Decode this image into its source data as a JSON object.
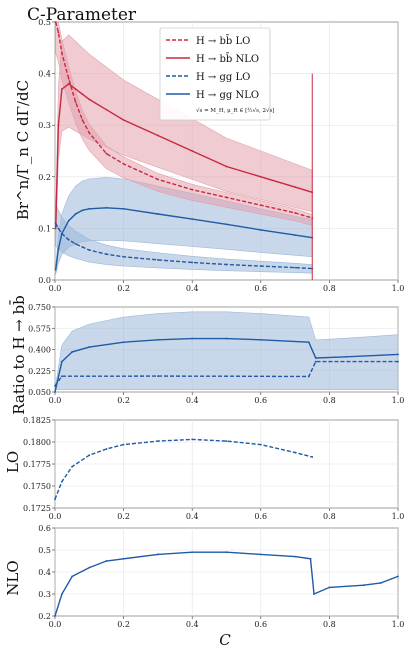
{
  "colors": {
    "red": "#c8283f",
    "blue": "#1f5ba6",
    "red_band": "#e3a1ad",
    "blue_band": "#9bb8d9"
  },
  "chart_data": [
    {
      "type": "line",
      "title": "C-Parameter",
      "ylabel": "Br^n/Γ_n C dΓ/dC",
      "xlim": [
        0,
        1
      ],
      "ylim": [
        0,
        0.5
      ],
      "yticks": [
        "0.0",
        "0.1",
        "0.2",
        "0.3",
        "0.4",
        "0.5"
      ],
      "xticks": [
        "0.0",
        "0.2",
        "0.4",
        "0.6",
        "0.8",
        "1.0"
      ],
      "grid": true,
      "legend_position": "top-center",
      "legend_note": "√s = M_H, μ_R ∈ [½√s, 2√s]",
      "series": [
        {
          "name": "H → bb̄ LO",
          "style": "dashed",
          "color": "red",
          "x": [
            0.002,
            0.01,
            0.02,
            0.04,
            0.06,
            0.08,
            0.1,
            0.15,
            0.2,
            0.3,
            0.4,
            0.5,
            0.6,
            0.7,
            0.75
          ],
          "y": [
            0.5,
            0.48,
            0.44,
            0.39,
            0.345,
            0.31,
            0.285,
            0.245,
            0.225,
            0.195,
            0.175,
            0.16,
            0.145,
            0.13,
            0.12
          ]
        },
        {
          "name": "H → bb̄ NLO",
          "style": "solid",
          "color": "red",
          "x": [
            0.002,
            0.01,
            0.02,
            0.04,
            0.06,
            0.08,
            0.1,
            0.15,
            0.2,
            0.3,
            0.4,
            0.5,
            0.6,
            0.7,
            0.75
          ],
          "y": [
            0.1,
            0.3,
            0.37,
            0.38,
            0.37,
            0.36,
            0.35,
            0.33,
            0.31,
            0.28,
            0.25,
            0.22,
            0.2,
            0.18,
            0.17
          ]
        },
        {
          "name": "H → gg LO",
          "style": "dashed",
          "color": "blue",
          "x": [
            0.002,
            0.01,
            0.02,
            0.04,
            0.06,
            0.08,
            0.1,
            0.15,
            0.2,
            0.3,
            0.4,
            0.5,
            0.6,
            0.7,
            0.75
          ],
          "y": [
            0.11,
            0.1,
            0.09,
            0.078,
            0.07,
            0.064,
            0.058,
            0.05,
            0.045,
            0.039,
            0.034,
            0.03,
            0.027,
            0.024,
            0.022
          ]
        },
        {
          "name": "H → gg NLO",
          "style": "solid",
          "color": "blue",
          "x": [
            0.002,
            0.01,
            0.02,
            0.04,
            0.06,
            0.08,
            0.1,
            0.15,
            0.2,
            0.3,
            0.4,
            0.5,
            0.6,
            0.7,
            0.75
          ],
          "y": [
            0.02,
            0.06,
            0.09,
            0.115,
            0.128,
            0.135,
            0.138,
            0.14,
            0.138,
            0.128,
            0.118,
            0.108,
            0.097,
            0.087,
            0.082
          ]
        }
      ]
    },
    {
      "type": "line",
      "ylabel": "Ratio to H → bb̄",
      "xlim": [
        0,
        1
      ],
      "ylim": [
        0.05,
        0.75
      ],
      "yticks": [
        "0.050",
        "0.225",
        "0.400",
        "0.575",
        "0.750"
      ],
      "xticks": [
        "0.0",
        "0.2",
        "0.4",
        "0.6",
        "0.8",
        "1.0"
      ],
      "series": [
        {
          "name": "LO",
          "style": "dashed",
          "color": "blue",
          "x": [
            0.0,
            0.02,
            0.1,
            0.3,
            0.5,
            0.74,
            0.76,
            1.0
          ],
          "y": [
            0.1,
            0.18,
            0.18,
            0.181,
            0.18,
            0.178,
            0.3,
            0.3
          ]
        },
        {
          "name": "NLO",
          "style": "solid",
          "color": "blue",
          "x": [
            0.0,
            0.02,
            0.05,
            0.1,
            0.2,
            0.3,
            0.4,
            0.5,
            0.6,
            0.74,
            0.76,
            0.85,
            1.0
          ],
          "y": [
            0.05,
            0.3,
            0.38,
            0.42,
            0.46,
            0.48,
            0.49,
            0.49,
            0.48,
            0.46,
            0.33,
            0.34,
            0.36
          ]
        }
      ]
    },
    {
      "type": "line",
      "ylabel": "LO",
      "xlim": [
        0,
        1
      ],
      "ylim": [
        0.1725,
        0.1825
      ],
      "yticks": [
        "0.1725",
        "0.1750",
        "0.1775",
        "0.1800",
        "0.1825"
      ],
      "xticks": [
        "0.0",
        "0.2",
        "0.4",
        "0.6",
        "0.8",
        "1.0"
      ],
      "series": [
        {
          "name": "LO",
          "style": "dashed",
          "color": "blue",
          "x": [
            0.0,
            0.02,
            0.05,
            0.1,
            0.15,
            0.2,
            0.3,
            0.4,
            0.5,
            0.6,
            0.7,
            0.75
          ],
          "y": [
            0.1735,
            0.1755,
            0.1772,
            0.1785,
            0.1792,
            0.1797,
            0.1801,
            0.1803,
            0.1801,
            0.1797,
            0.1788,
            0.1783
          ]
        }
      ]
    },
    {
      "type": "line",
      "ylabel": "NLO",
      "xlim": [
        0,
        1
      ],
      "ylim": [
        0.2,
        0.6
      ],
      "yticks": [
        "0.2",
        "0.3",
        "0.4",
        "0.5",
        "0.6"
      ],
      "xticks": [
        "0.0",
        "0.2",
        "0.4",
        "0.6",
        "0.8",
        "1.0"
      ],
      "xlabel": "C",
      "series": [
        {
          "name": "NLO",
          "style": "solid",
          "color": "blue",
          "x": [
            0.0,
            0.02,
            0.05,
            0.1,
            0.15,
            0.2,
            0.3,
            0.4,
            0.5,
            0.6,
            0.7,
            0.745,
            0.755,
            0.8,
            0.9,
            0.95,
            1.0
          ],
          "y": [
            0.2,
            0.3,
            0.38,
            0.42,
            0.45,
            0.46,
            0.48,
            0.49,
            0.49,
            0.48,
            0.47,
            0.46,
            0.3,
            0.33,
            0.34,
            0.35,
            0.38
          ]
        }
      ]
    }
  ]
}
